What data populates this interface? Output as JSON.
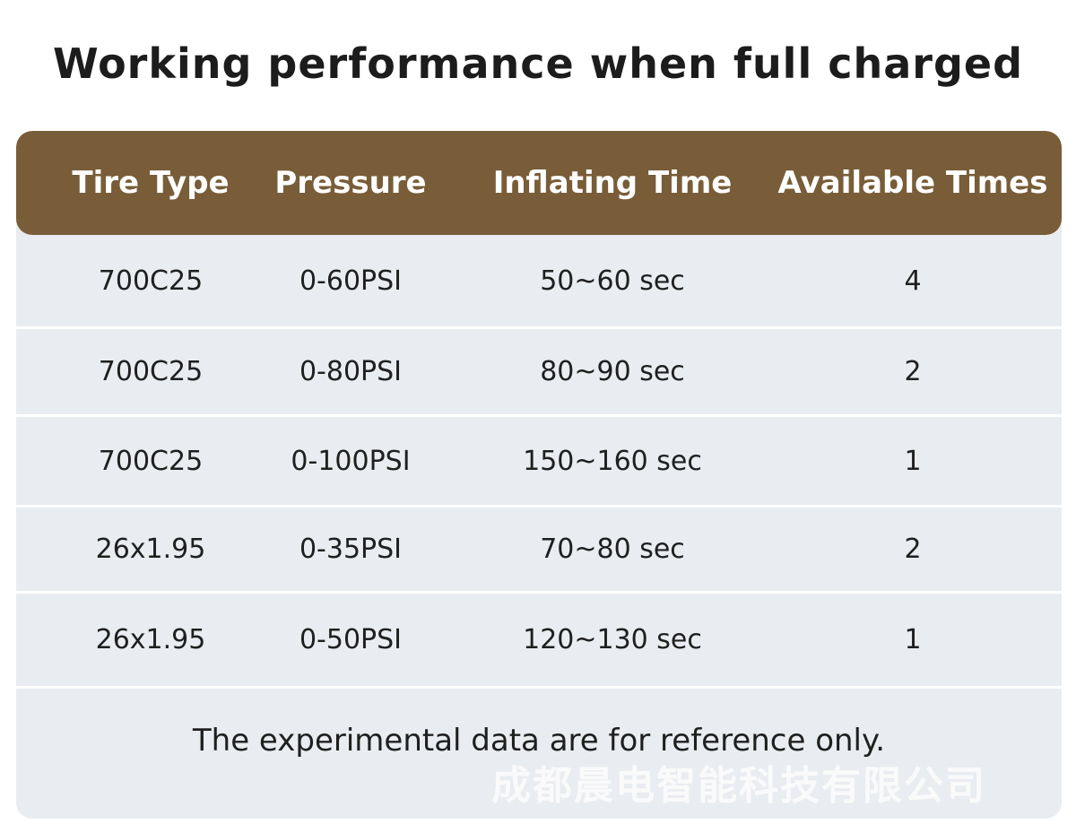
{
  "title": "Working performance when full charged",
  "table": {
    "headers": [
      "Tire Type",
      "Pressure",
      "Inflating Time",
      "Available Times"
    ],
    "rows": [
      [
        "700C25",
        "0-60PSI",
        "50~60 sec",
        "4"
      ],
      [
        "700C25",
        "0-80PSI",
        "80~90 sec",
        "2"
      ],
      [
        "700C25",
        "0-100PSI",
        "150~160 sec",
        "1"
      ],
      [
        "26x1.95",
        "0-35PSI",
        "70~80 sec",
        "2"
      ],
      [
        "26x1.95",
        "0-50PSI",
        "120~130 sec",
        "1"
      ]
    ]
  },
  "note": "The experimental data are for reference only.",
  "watermark": "成都晨电智能科技有限公司",
  "colors": {
    "header_bg": "#785d38",
    "table_bg": "#e9ecf0",
    "header_text": "#ffffff"
  }
}
